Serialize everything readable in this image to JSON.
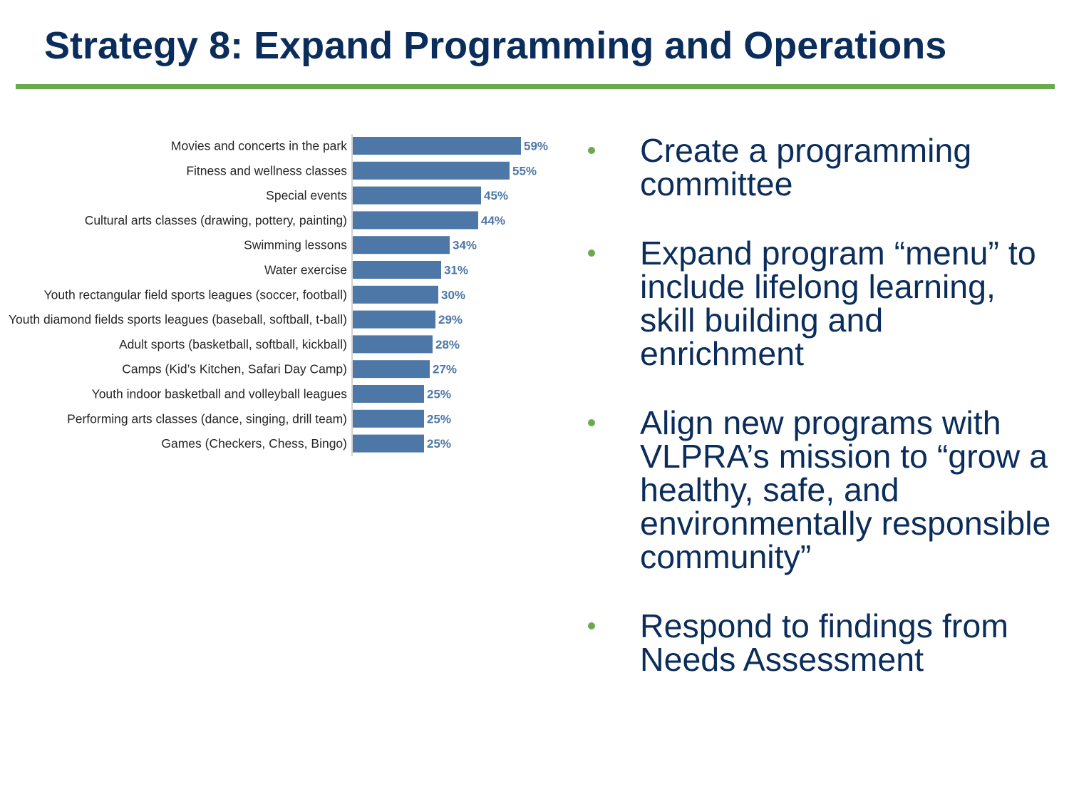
{
  "title": "Strategy 8: Expand Programming and Operations",
  "colors": {
    "title": "#0b2d5b",
    "rule": "#6aaa4f",
    "bar": "#4d77a6",
    "value_label": "#4d77a6",
    "bullet_dot": "#6aaa4f",
    "bullet_text": "#0b2d5b",
    "axis": "#a6a6a6"
  },
  "chart_data": {
    "type": "bar",
    "orientation": "horizontal",
    "categories": [
      "Movies and concerts in the park",
      "Fitness and wellness classes",
      "Special events",
      "Cultural arts classes (drawing, pottery, painting)",
      "Swimming lessons",
      "Water exercise",
      "Youth rectangular field sports leagues (soccer, football)",
      "Youth diamond fields sports leagues (baseball, softball, t-ball)",
      "Adult sports (basketball, softball, kickball)",
      "Camps (Kid’s Kitchen, Safari Day Camp)",
      "Youth indoor basketball and volleyball leagues",
      "Performing arts classes (dance, singing, drill team)",
      "Games (Checkers, Chess, Bingo)"
    ],
    "values": [
      59,
      55,
      45,
      44,
      34,
      31,
      30,
      29,
      28,
      27,
      25,
      25,
      25
    ],
    "value_labels": [
      "59%",
      "55%",
      "45%",
      "44%",
      "34%",
      "31%",
      "30%",
      "29%",
      "28%",
      "27%",
      "25%",
      "25%",
      "25%"
    ],
    "unit": "%",
    "xlim": [
      0,
      100
    ],
    "grid": false,
    "legend": "none"
  },
  "bullets": [
    "Create a programming committee",
    "Expand program “menu” to include lifelong learning, skill building and enrichment",
    "Align new programs with VLPRA’s mission to “grow a healthy, safe, and environmentally responsible community”",
    "Respond to findings from Needs Assessment"
  ]
}
